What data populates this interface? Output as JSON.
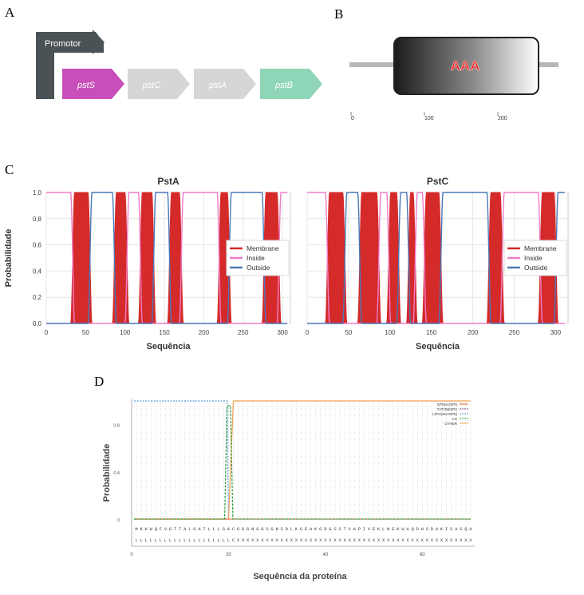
{
  "panels": {
    "a": "A",
    "b": "B",
    "c": "C",
    "d": "D"
  },
  "operon": {
    "promoter_label": "Promotor",
    "genes": [
      {
        "name": "pstS",
        "color": "#c84fb9"
      },
      {
        "name": "pstC",
        "color": "#d6d6d6"
      },
      {
        "name": "pstA",
        "color": "#d6d6d6"
      },
      {
        "name": "pstB",
        "color": "#8fd6b8"
      }
    ],
    "promoter_color": "#4b5256"
  },
  "domain_map": {
    "domain_label": "AAA",
    "domain_label_color": "#e8231f",
    "axis_ticks": [
      "0",
      "100",
      "200"
    ],
    "axis_tick_values": [
      0,
      100,
      200
    ],
    "line_color": "#b8b8b8"
  },
  "chart_data": [
    {
      "type": "area",
      "title": "PstA",
      "xlabel": "Sequência",
      "ylabel": "Probabilidade",
      "xlim": [
        0,
        310
      ],
      "ylim": [
        0,
        1.0
      ],
      "xticks": [
        "0",
        "50",
        "100",
        "150",
        "200",
        "250",
        "300"
      ],
      "yticks": [
        "0,0",
        "0,2",
        "0,4",
        "0,6",
        "0,8",
        "1,0"
      ],
      "grid": true,
      "legend_position": "right",
      "series": [
        {
          "name": "Membrane",
          "color": "#d42a2a",
          "segments": [
            [
              34,
              55
            ],
            [
              87,
              102
            ],
            [
              120,
              136
            ],
            [
              157,
              171
            ],
            [
              220,
              232
            ],
            [
              277,
              295
            ]
          ]
        },
        {
          "name": "Inside",
          "color": "#f07cc8"
        },
        {
          "name": "Outside",
          "color": "#4a78b8"
        }
      ]
    },
    {
      "type": "area",
      "title": "PstC",
      "xlabel": "Sequência",
      "ylabel": "Probabilidade",
      "xlim": [
        0,
        315
      ],
      "ylim": [
        0,
        1.0
      ],
      "xticks": [
        "0",
        "50",
        "100",
        "150",
        "200",
        "250",
        "300"
      ],
      "grid": true,
      "legend_position": "right",
      "series": [
        {
          "name": "Membrane",
          "color": "#d42a2a",
          "segments": [
            [
              25,
              45
            ],
            [
              64,
              86
            ],
            [
              99,
              110
            ],
            [
              123,
              130
            ],
            [
              142,
              161
            ],
            [
              220,
              235
            ],
            [
              282,
              300
            ]
          ]
        },
        {
          "name": "Inside",
          "color": "#f07cc8"
        },
        {
          "name": "Outside",
          "color": "#4a78b8"
        }
      ]
    },
    {
      "type": "line",
      "xlabel": "Sequência da proteína",
      "ylabel": "Probabilidade",
      "xlim": [
        0,
        70
      ],
      "ylim": [
        0,
        1.0
      ],
      "xticks": [
        "0",
        "20",
        "40",
        "60"
      ],
      "yticks": [
        "0",
        "0.4",
        "0.8"
      ],
      "legend_position": "top-right",
      "cleavage_site": 20,
      "sequence": "MKKWQFVGTTALGATLLLGACGGGNGGSGNSDLKGEAKGDGSSTVAPIVEKLNEKWAQDHSDAKISAGQA",
      "annotation": "LLLLLLLLLLLLLLLLLLLLCXXXXXXXXXXXXXXXXXXXXXXXXXXXXXXXXXXXXXXXXXXXXXXXXX",
      "series": [
        {
          "name": "SP(Sec/SPI)",
          "color": "#e05a2b"
        },
        {
          "name": "TAT(Tat/SPI)",
          "color": "#7a3a9a"
        },
        {
          "name": "LIPO(Sec/SPII)",
          "color": "#5a9ad6"
        },
        {
          "name": "CS",
          "color": "#2f9a3a"
        },
        {
          "name": "OTHER",
          "color": "#f0a050"
        }
      ]
    }
  ]
}
